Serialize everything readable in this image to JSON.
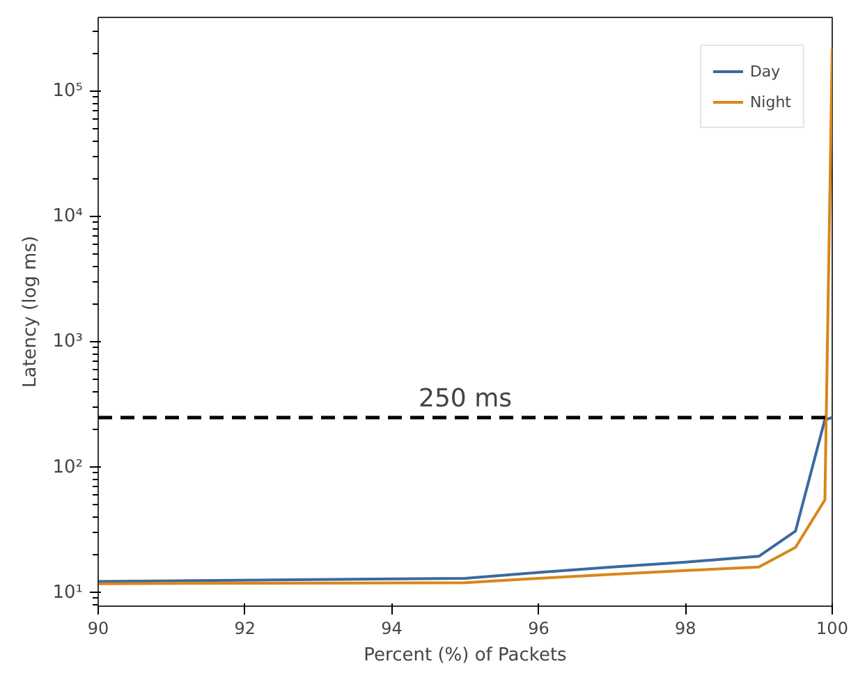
{
  "chart_data": {
    "type": "line",
    "xlabel": "Percent (%) of Packets",
    "ylabel": "Latency (log ms)",
    "x": [
      90,
      95,
      96,
      97,
      98,
      99,
      99.5,
      99.9,
      100
    ],
    "series": [
      {
        "name": "Day",
        "color": "#3a6aa0",
        "values": [
          12.3,
          13,
          14.5,
          16,
          17.5,
          19.5,
          31,
          240,
          250
        ]
      },
      {
        "name": "Night",
        "color": "#d9861a",
        "values": [
          11.8,
          12,
          13,
          14,
          15,
          16,
          23,
          55,
          220000
        ]
      }
    ],
    "log": true,
    "xlim": [
      90,
      100
    ],
    "ylim": [
      7.8,
      390000
    ],
    "xticks": [
      90,
      92,
      94,
      96,
      98,
      100
    ],
    "yticks": [
      {
        "value": 10,
        "label": "10¹"
      },
      {
        "value": 100,
        "label": "10²"
      },
      {
        "value": 1000,
        "label": "10³"
      },
      {
        "value": 10000,
        "label": "10⁴"
      },
      {
        "value": 100000,
        "label": "10⁵"
      }
    ],
    "ref_lines": [
      {
        "axis": "y",
        "value": 250,
        "label": "250 ms",
        "color": "#000000",
        "line_style": "dashed"
      }
    ],
    "grid": false,
    "legend": "top right",
    "marker": "none",
    "line_style": "solid"
  }
}
